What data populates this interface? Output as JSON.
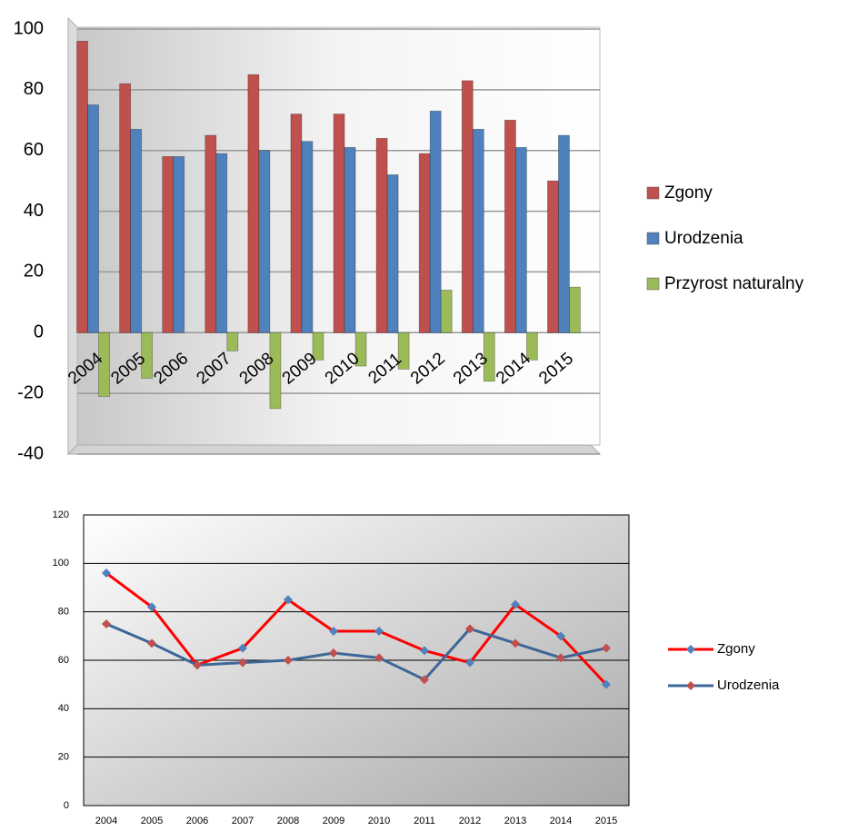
{
  "chart_data": [
    {
      "type": "bar",
      "categories": [
        "2004",
        "2005",
        "2006",
        "2007",
        "2008",
        "2009",
        "2010",
        "2011",
        "2012",
        "2013",
        "2014",
        "2015"
      ],
      "series": [
        {
          "name": "Zgony",
          "color": "#c0504d",
          "values": [
            96,
            82,
            58,
            65,
            85,
            72,
            72,
            64,
            59,
            83,
            70,
            50
          ]
        },
        {
          "name": "Urodzenia",
          "color": "#4f81bd",
          "values": [
            75,
            67,
            58,
            59,
            60,
            63,
            61,
            52,
            73,
            67,
            61,
            65
          ]
        },
        {
          "name": "Przyrost naturalny",
          "color": "#9bbb59",
          "values": [
            -21,
            -15,
            0,
            -6,
            -25,
            -9,
            -11,
            -12,
            14,
            -16,
            -9,
            15
          ]
        }
      ],
      "ylim": [
        -40,
        100
      ],
      "yticks": [
        -40,
        -20,
        0,
        20,
        40,
        60,
        80,
        100
      ],
      "grid": true,
      "legend": "right"
    },
    {
      "type": "line",
      "categories": [
        "2004",
        "2005",
        "2006",
        "2007",
        "2008",
        "2009",
        "2010",
        "2011",
        "2012",
        "2013",
        "2014",
        "2015"
      ],
      "series": [
        {
          "name": "Zgony",
          "color": "#ff0000",
          "marker_color": "#4f81bd",
          "values": [
            96,
            82,
            58,
            65,
            85,
            72,
            72,
            64,
            59,
            83,
            70,
            50
          ]
        },
        {
          "name": "Urodzenia",
          "color": "#3d6698",
          "marker_color": "#c0504d",
          "values": [
            75,
            67,
            58,
            59,
            60,
            63,
            61,
            52,
            73,
            67,
            61,
            65
          ]
        }
      ],
      "ylim": [
        0,
        120
      ],
      "yticks": [
        0,
        20,
        40,
        60,
        80,
        100,
        120
      ],
      "grid": true,
      "legend": "right"
    }
  ]
}
